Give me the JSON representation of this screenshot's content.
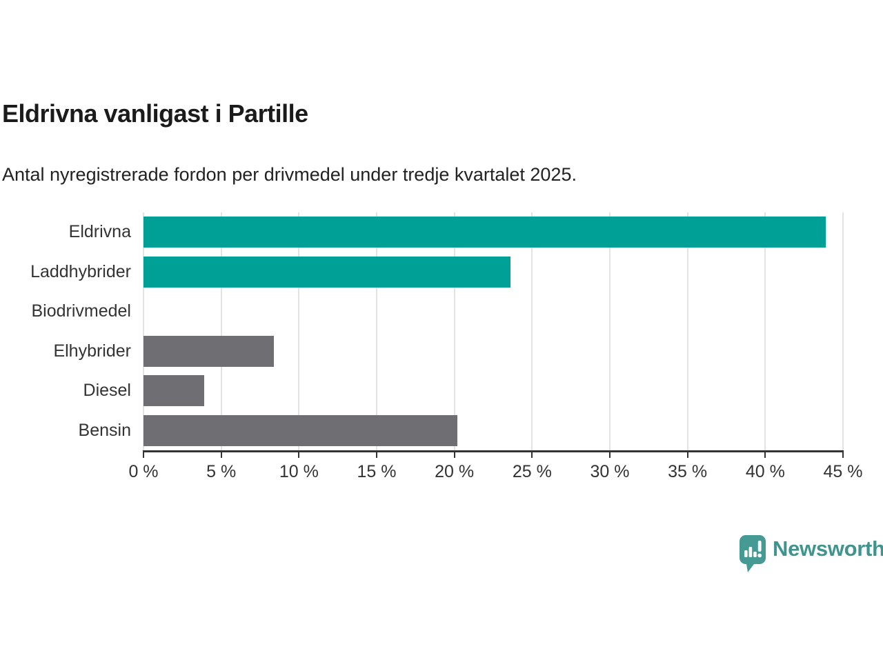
{
  "title": "Eldrivna vanligast i Partille",
  "subtitle": "Antal nyregistrerade fordon per drivmedel under tredje kvartalet 2025.",
  "chart_data": {
    "type": "bar",
    "orientation": "horizontal",
    "title": "Eldrivna vanligast i Partille",
    "subtitle": "Antal nyregistrerade fordon per drivmedel under tredje kvartalet 2025.",
    "categories": [
      "Eldrivna",
      "Laddhybrider",
      "Biodrivmedel",
      "Elhybrider",
      "Diesel",
      "Bensin"
    ],
    "values": [
      43.9,
      23.6,
      0,
      8.4,
      3.9,
      20.2
    ],
    "unit": "%",
    "xlim": [
      0,
      45
    ],
    "x_tick_step": 5,
    "x_tick_labels": [
      "0 %",
      "5 %",
      "10 %",
      "15 %",
      "20 %",
      "25 %",
      "30 %",
      "35 %",
      "40 %",
      "45 %"
    ],
    "bar_colors": [
      "#00a096",
      "#00a096",
      "#6e6e73",
      "#6e6e73",
      "#6e6e73",
      "#6e6e73"
    ],
    "grid": true,
    "legend": "none"
  },
  "colors": {
    "teal": "#00a096",
    "gray": "#6e6e73",
    "gridline": "#e3e3e3",
    "axis": "#333333",
    "logo_teal": "#3f948e"
  },
  "branding": {
    "logo_text": "Newsworthy",
    "logo_icon": "newsworthy-chart-bubble-icon"
  }
}
